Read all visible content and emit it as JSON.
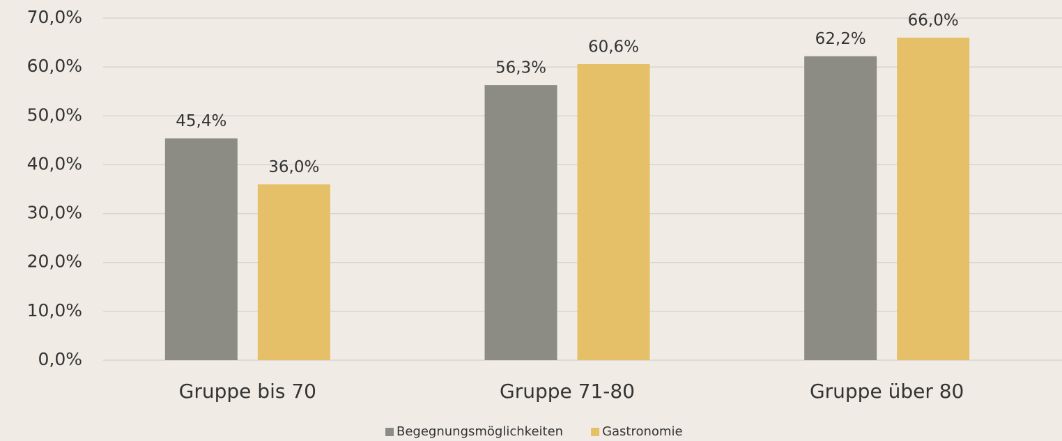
{
  "chart_data": {
    "type": "bar",
    "categories": [
      "Gruppe bis 70",
      "Gruppe 71-80",
      "Gruppe über 80"
    ],
    "series": [
      {
        "name": "Begegnungsmöglichkeiten",
        "color": "#8c8c85",
        "values": [
          45.4,
          56.3,
          62.2
        ],
        "value_labels": [
          "45,4%",
          "56,3%",
          "62,2%"
        ]
      },
      {
        "name": "Gastronomie",
        "color": "#e6bf69",
        "values": [
          36.0,
          60.6,
          66.0
        ],
        "value_labels": [
          "36,0%",
          "60,6%",
          "66,0%"
        ]
      }
    ],
    "ylim": [
      0,
      70
    ],
    "yticks": [
      {
        "value": 0,
        "label": "0,0%"
      },
      {
        "value": 10,
        "label": "10,0%"
      },
      {
        "value": 20,
        "label": "20,0%"
      },
      {
        "value": 30,
        "label": "30,0%"
      },
      {
        "value": 40,
        "label": "40,0%"
      },
      {
        "value": 50,
        "label": "50,0%"
      },
      {
        "value": 60,
        "label": "60,0%"
      },
      {
        "value": 70,
        "label": "70,0%"
      }
    ],
    "grid": true,
    "legend": "bottom"
  }
}
